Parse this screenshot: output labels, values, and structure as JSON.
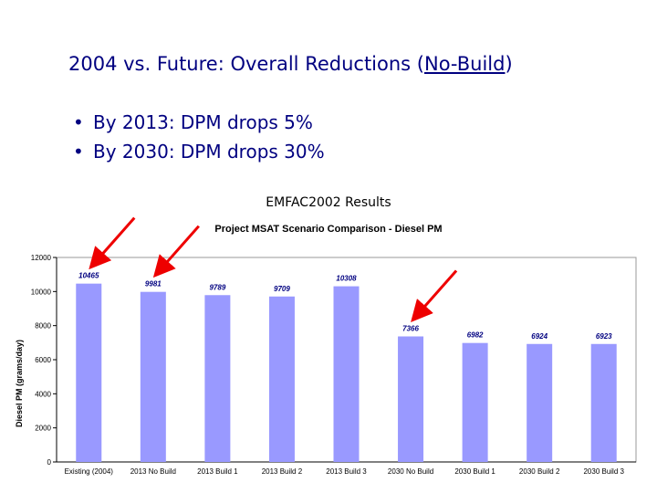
{
  "slide": {
    "title_prefix": "2004 vs. Future:  Overall Reductions (",
    "title_underlined": "No-Build",
    "title_suffix": ")",
    "bullet_char": "•",
    "bullets": [
      "By 2013:  DPM drops 5%",
      "By 2030:  DPM drops 30%"
    ],
    "caption": "EMFAC2002 Results"
  },
  "chart_data": {
    "type": "bar",
    "title": "Project MSAT Scenario Comparison - Diesel PM",
    "xlabel": "",
    "ylabel": "Diesel PM (grams/day)",
    "ylim": [
      0,
      12000
    ],
    "yticks": [
      0,
      2000,
      4000,
      6000,
      8000,
      10000,
      12000
    ],
    "categories": [
      "Existing (2004)",
      "2013 No Build",
      "2013 Build 1",
      "2013 Build 2",
      "2013 Build 3",
      "2030 No Build",
      "2030 Build 1",
      "2030 Build 2",
      "2030 Build 3"
    ],
    "values": [
      10465,
      9981,
      9789,
      9709,
      10308,
      7366,
      6982,
      6924,
      6923
    ],
    "data_labels": [
      "10465",
      "9981",
      "9789",
      "9709",
      "10308",
      "7366",
      "6982",
      "6924",
      "6923"
    ],
    "bar_color": "#9999ff",
    "grid": false,
    "legend": "none",
    "annotations": [
      {
        "type": "arrow",
        "target": "Existing (2004)",
        "color": "#ee0000"
      },
      {
        "type": "arrow",
        "target": "2013 No Build",
        "color": "#ee0000"
      },
      {
        "type": "arrow",
        "target": "2030 No Build",
        "color": "#ee0000"
      }
    ]
  }
}
